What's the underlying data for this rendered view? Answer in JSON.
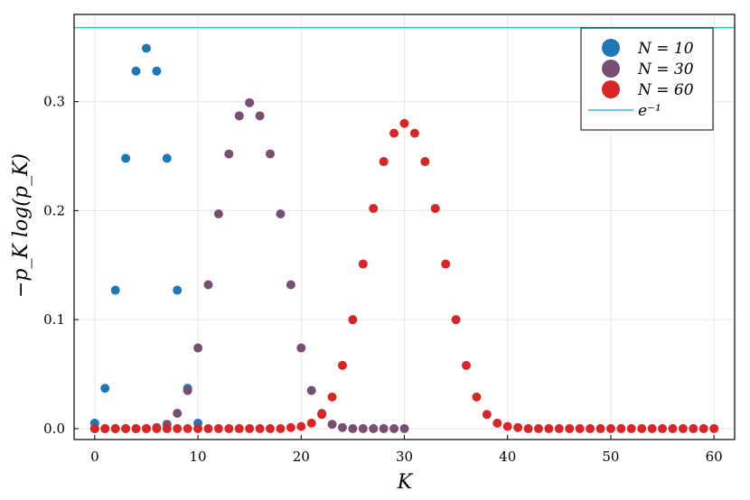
{
  "chart_data": {
    "type": "scatter",
    "title": "",
    "xlabel": "K",
    "ylabel": "−p_K log(p_K)",
    "xlim": [
      -2,
      62
    ],
    "ylim": [
      -0.01,
      0.38
    ],
    "xticks": [
      0,
      10,
      20,
      30,
      40,
      50,
      60
    ],
    "xtick_labels": [
      "0",
      "10",
      "20",
      "30",
      "40",
      "50",
      "60"
    ],
    "yticks": [
      0.0,
      0.1,
      0.2,
      0.3
    ],
    "ytick_labels": [
      "0.0",
      "0.1",
      "0.2",
      "0.3"
    ],
    "grid": true,
    "legend_position": "top-right",
    "series": [
      {
        "name": "N = 10",
        "color": "#1f77b4",
        "x": [
          0,
          1,
          2,
          3,
          4,
          5,
          6,
          7,
          8,
          9,
          10
        ],
        "y": [
          0.005,
          0.037,
          0.127,
          0.248,
          0.328,
          0.349,
          0.328,
          0.248,
          0.127,
          0.037,
          0.005
        ]
      },
      {
        "name": "N = 30",
        "color": "#774f73",
        "x": [
          0,
          1,
          2,
          3,
          4,
          5,
          6,
          7,
          8,
          9,
          10,
          11,
          12,
          13,
          14,
          15,
          16,
          17,
          18,
          19,
          20,
          21,
          22,
          23,
          24,
          25,
          26,
          27,
          28,
          29,
          30
        ],
        "y": [
          0,
          0,
          0,
          0,
          0,
          0,
          0.001,
          0.004,
          0.014,
          0.035,
          0.074,
          0.132,
          0.197,
          0.252,
          0.287,
          0.299,
          0.287,
          0.252,
          0.197,
          0.132,
          0.074,
          0.035,
          0.014,
          0.004,
          0.001,
          0,
          0,
          0,
          0,
          0,
          0
        ]
      },
      {
        "name": "N = 60",
        "color": "#d62728",
        "x": [
          0,
          1,
          2,
          3,
          4,
          5,
          6,
          7,
          8,
          9,
          10,
          11,
          12,
          13,
          14,
          15,
          16,
          17,
          18,
          19,
          20,
          21,
          22,
          23,
          24,
          25,
          26,
          27,
          28,
          29,
          30,
          31,
          32,
          33,
          34,
          35,
          36,
          37,
          38,
          39,
          40,
          41,
          42,
          43,
          44,
          45,
          46,
          47,
          48,
          49,
          50,
          51,
          52,
          53,
          54,
          55,
          56,
          57,
          58,
          59,
          60
        ],
        "y": [
          0,
          0,
          0,
          0,
          0,
          0,
          0,
          0,
          0,
          0,
          0,
          0,
          0,
          0,
          0,
          0,
          0,
          0,
          0,
          0.001,
          0.002,
          0.005,
          0.013,
          0.029,
          0.058,
          0.1,
          0.151,
          0.202,
          0.245,
          0.271,
          0.28,
          0.271,
          0.245,
          0.202,
          0.151,
          0.1,
          0.058,
          0.029,
          0.013,
          0.005,
          0.002,
          0.001,
          0,
          0,
          0,
          0,
          0,
          0,
          0,
          0,
          0,
          0,
          0,
          0,
          0,
          0,
          0,
          0,
          0,
          0,
          0
        ]
      }
    ],
    "reference_line": {
      "name": "e^-1",
      "y": 0.3679,
      "color": "#2bbfcf"
    }
  },
  "legend": {
    "entries": [
      {
        "label": "N = 10",
        "color": "#1f77b4",
        "kind": "marker"
      },
      {
        "label": "N = 30",
        "color": "#774f73",
        "kind": "marker"
      },
      {
        "label": "N = 60",
        "color": "#d62728",
        "kind": "marker"
      },
      {
        "label": "e⁻¹",
        "color": "#2bbfcf",
        "kind": "line"
      }
    ]
  }
}
